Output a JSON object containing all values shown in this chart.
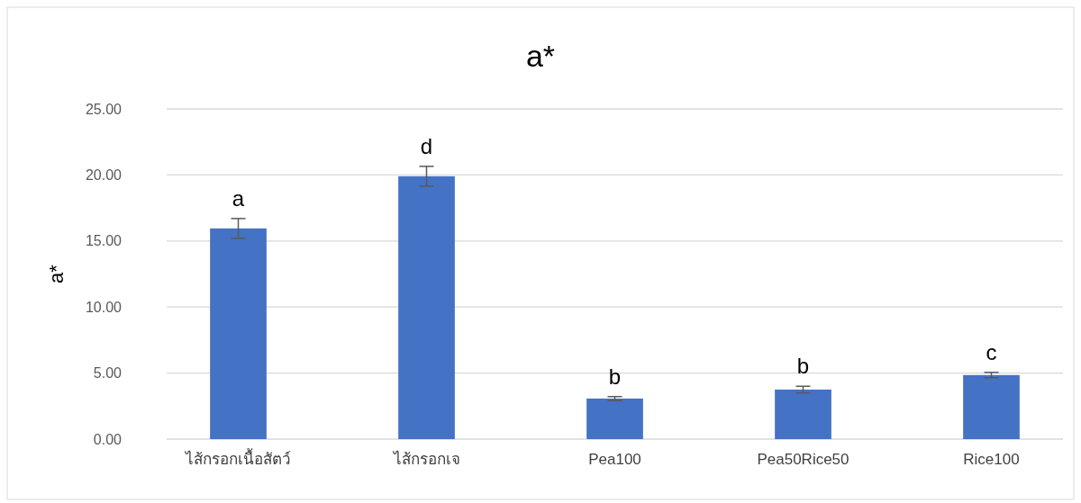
{
  "chart_data": {
    "type": "bar",
    "title": "a*",
    "ylabel": "a*",
    "categories": [
      "ไส้กรอกเนื้อสัตว์",
      "ไส้กรอกเจ",
      "Pea100",
      "Pea50Rice50",
      "Rice100"
    ],
    "values": [
      15.95,
      19.9,
      3.07,
      3.75,
      4.85
    ],
    "errors": [
      0.75,
      0.75,
      0.15,
      0.25,
      0.2
    ],
    "color": "#4472c4",
    "ylim": [
      0,
      25
    ],
    "yticks": [
      {
        "value": 0,
        "label": "0.00"
      },
      {
        "value": 5,
        "label": "5.00"
      },
      {
        "value": 10,
        "label": "10.00"
      },
      {
        "value": 15,
        "label": "15.00"
      },
      {
        "value": 20,
        "label": "20.00"
      },
      {
        "value": 25,
        "label": "25.00"
      }
    ],
    "grid": "y",
    "annotations": [
      {
        "text": "a",
        "x": "ไส้กรอกเนื้อสัตว์",
        "y": 16.7
      },
      {
        "text": "d",
        "x": "ไส้กรอกเจ",
        "y": 20.65
      },
      {
        "text": "b",
        "x": "Pea100",
        "y": 3.22
      },
      {
        "text": "b",
        "x": "Pea50Rice50",
        "y": 4.0
      },
      {
        "text": "c",
        "x": "Rice100",
        "y": 5.05
      }
    ]
  }
}
